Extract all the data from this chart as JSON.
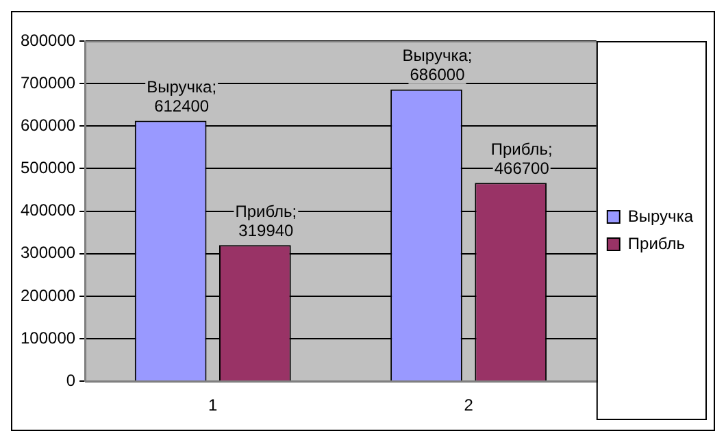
{
  "chart_data": {
    "type": "bar",
    "categories": [
      "1",
      "2"
    ],
    "series": [
      {
        "name": "Выручка",
        "color": "#9999ff",
        "values": [
          612400,
          686000
        ],
        "value_labels": [
          "Выручка; 612400",
          "Выручка; 686000"
        ]
      },
      {
        "name": "Прибль",
        "color": "#993366",
        "values": [
          319940,
          466700
        ],
        "value_labels": [
          "Прибль; 319940",
          "Прибль; 466700"
        ]
      }
    ],
    "ylim": [
      0,
      800000
    ],
    "yticks": [
      0,
      100000,
      200000,
      300000,
      400000,
      500000,
      600000,
      700000,
      800000
    ],
    "grid": "y",
    "legend": "right"
  }
}
